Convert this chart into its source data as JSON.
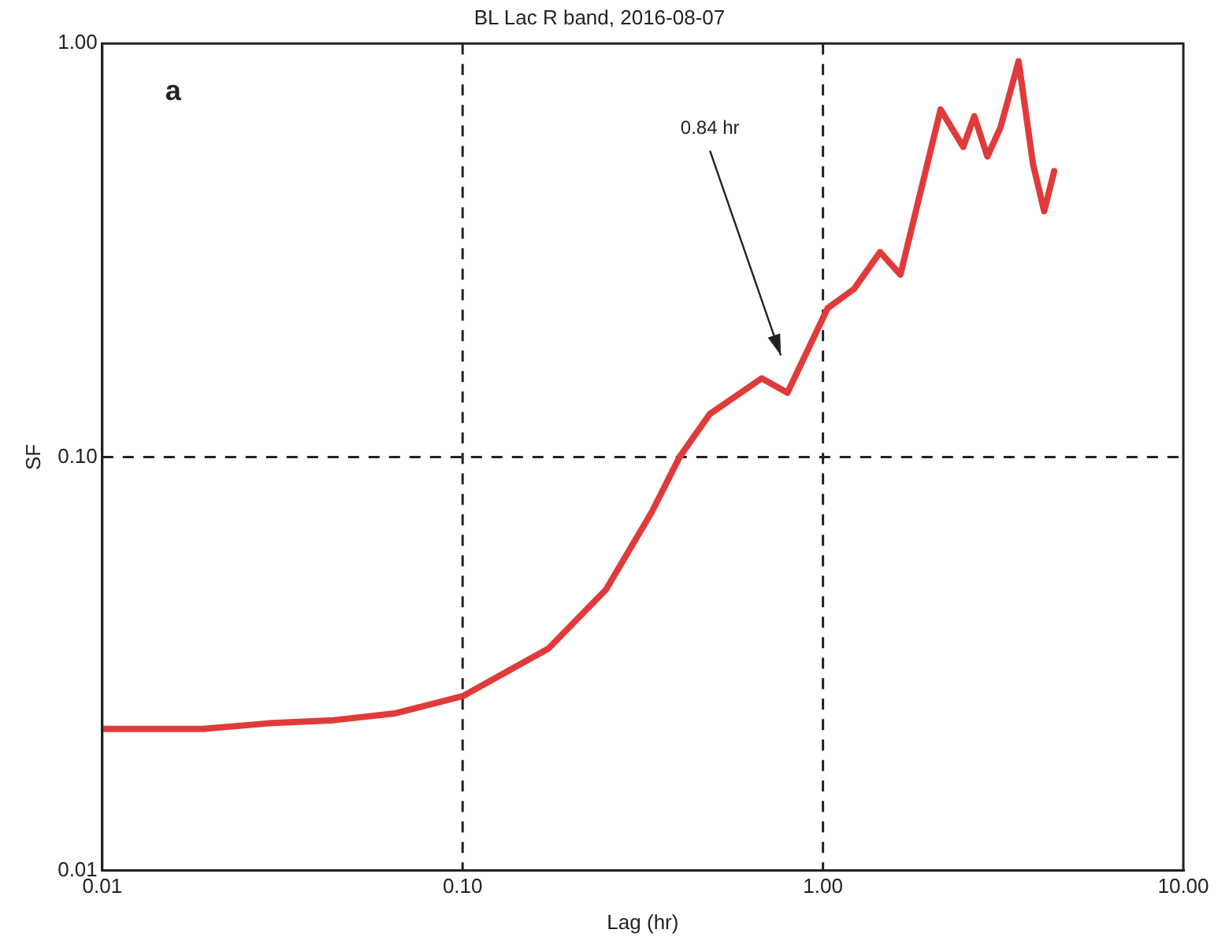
{
  "chart_data": {
    "type": "line",
    "title": "BL Lac R band, 2016-08-07",
    "xlabel": "Lag (hr)",
    "ylabel": "SF",
    "log": "xy",
    "grid": true,
    "legend": false,
    "marker": "none",
    "line_style": "solid",
    "xlim": [
      0.01,
      10
    ],
    "ylim": [
      0.01,
      1
    ],
    "xticks": [
      {
        "value": 0.01,
        "label": "0.01"
      },
      {
        "value": 0.1,
        "label": "0.10"
      },
      {
        "value": 1,
        "label": "1.00"
      },
      {
        "value": 10,
        "label": "10.00"
      }
    ],
    "yticks": [
      {
        "value": 0.01,
        "label": "0.01"
      },
      {
        "value": 0.1,
        "label": "0.10"
      },
      {
        "value": 1,
        "label": "1.00"
      }
    ],
    "annotations": [
      "a",
      "0.84 hr"
    ],
    "series": [
      {
        "color": "#e03a3a",
        "x": [
          0.01,
          0.0147,
          0.019,
          0.029,
          0.044,
          0.065,
          0.1,
          0.173,
          0.25,
          0.335,
          0.4,
          0.485,
          0.676,
          0.797,
          1.03,
          1.22,
          1.44,
          1.64,
          2.12,
          2.45,
          2.63,
          2.86,
          3.11,
          3.49,
          3.83,
          4.11,
          4.38
        ],
        "values": [
          0.022,
          0.022,
          0.022,
          0.0227,
          0.0231,
          0.024,
          0.0264,
          0.0344,
          0.0478,
          0.0736,
          0.1,
          0.127,
          0.155,
          0.143,
          0.229,
          0.255,
          0.313,
          0.276,
          0.692,
          0.562,
          0.667,
          0.533,
          0.627,
          0.906,
          0.509,
          0.393,
          0.491
        ]
      }
    ]
  }
}
